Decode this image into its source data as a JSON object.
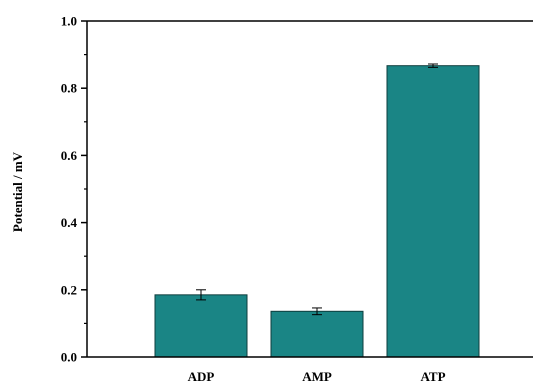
{
  "chart_data": {
    "type": "bar",
    "categories": [
      "ADP",
      "AMP",
      "ATP"
    ],
    "values": [
      0.185,
      0.136,
      0.867
    ],
    "errors": [
      0.015,
      0.01,
      0.005
    ],
    "xlabel": "",
    "ylabel": "Potential / mV",
    "ylim": [
      0.0,
      1.0
    ],
    "y_ticks": [
      "0.0",
      "0.2",
      "0.4",
      "0.6",
      "0.8",
      "1.0"
    ],
    "grid": false,
    "bar_color": "#1a8585",
    "bar_edge_color": "#0d3d3d"
  }
}
